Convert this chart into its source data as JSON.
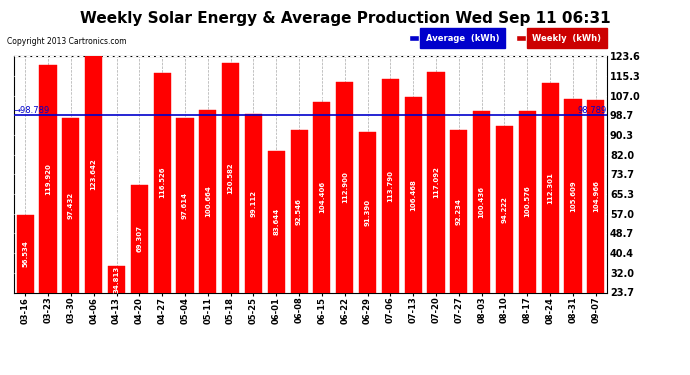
{
  "title": "Weekly Solar Energy & Average Production Wed Sep 11 06:31",
  "copyright": "Copyright 2013 Cartronics.com",
  "categories": [
    "03-16",
    "03-23",
    "03-30",
    "04-06",
    "04-13",
    "04-20",
    "04-27",
    "05-04",
    "05-11",
    "05-18",
    "05-25",
    "06-01",
    "06-08",
    "06-15",
    "06-22",
    "06-29",
    "07-06",
    "07-13",
    "07-20",
    "07-27",
    "08-03",
    "08-10",
    "08-17",
    "08-24",
    "08-31",
    "09-07"
  ],
  "values": [
    56.534,
    119.92,
    97.432,
    123.642,
    34.813,
    69.307,
    116.526,
    97.614,
    100.664,
    120.582,
    99.112,
    83.644,
    92.546,
    104.406,
    112.9,
    91.39,
    113.79,
    106.468,
    117.092,
    92.234,
    100.436,
    94.222,
    100.576,
    112.301,
    105.609,
    104.966
  ],
  "bar_color": "#ff0000",
  "average_line": 98.789,
  "average_label": "98.789",
  "yticks": [
    23.7,
    32.0,
    40.4,
    48.7,
    57.0,
    65.3,
    73.7,
    82.0,
    90.3,
    98.7,
    107.0,
    115.3,
    123.6
  ],
  "ymin": 23.7,
  "ymax": 123.6,
  "average_line_color": "#0000cc",
  "background_color": "#ffffff",
  "plot_bg_color": "#ffffff",
  "grid_color": "#aaaaaa",
  "title_fontsize": 11,
  "bar_value_fontsize": 5.0,
  "tick_fontsize": 7,
  "legend_avg_color": "#0000cc",
  "legend_weekly_color": "#cc0000",
  "legend_text_avg": "Average  (kWh)",
  "legend_text_weekly": "Weekly  (kWh)"
}
